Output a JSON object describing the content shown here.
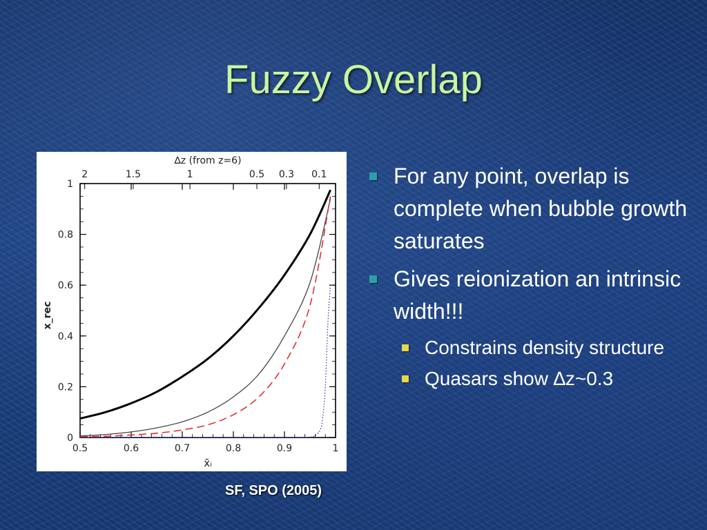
{
  "slide": {
    "title": "Fuzzy Overlap",
    "credit": "SF, SPO (2005)",
    "bullets": [
      {
        "text": "For any point, overlap is complete when bubble growth saturates"
      },
      {
        "text": "Gives reionization an intrinsic width!!!"
      }
    ],
    "sub_bullets": [
      {
        "text": "Constrains density structure"
      },
      {
        "text": "Quasars show ∆z~0.3"
      }
    ],
    "colors": {
      "title": "#c8f5a0",
      "bullet": "#2ba0a8",
      "sub_bullet": "#e6d84a"
    }
  },
  "chart_data": {
    "type": "line",
    "xlabel": "x̄ᵢ",
    "ylabel": "x_rec",
    "x2label": "∆z (from z=6)",
    "xlim": [
      0.5,
      1.0
    ],
    "ylim": [
      0,
      1.0
    ],
    "x_ticks": [
      "0.5",
      "0.6",
      "0.7",
      "0.8",
      "0.9",
      "1"
    ],
    "y_ticks": [
      "0",
      "0.2",
      "0.4",
      "0.6",
      "0.8",
      "1"
    ],
    "top_ticks": [
      {
        "label": "2",
        "x": 0.509
      },
      {
        "label": "1.5",
        "x": 0.604
      },
      {
        "label": "1",
        "x": 0.715
      },
      {
        "label": "0.5",
        "x": 0.846
      },
      {
        "label": "0.3",
        "x": 0.904
      },
      {
        "label": "0.1",
        "x": 0.968
      }
    ],
    "series": [
      {
        "style": "thick-solid",
        "color": "#000000",
        "x": [
          0.5,
          0.55,
          0.6,
          0.65,
          0.7,
          0.75,
          0.8,
          0.85,
          0.9,
          0.95,
          0.99
        ],
        "y": [
          0.075,
          0.1,
          0.135,
          0.18,
          0.24,
          0.31,
          0.4,
          0.51,
          0.64,
          0.8,
          0.975
        ]
      },
      {
        "style": "thin-solid",
        "color": "#444444",
        "x": [
          0.5,
          0.55,
          0.6,
          0.65,
          0.7,
          0.75,
          0.8,
          0.85,
          0.9,
          0.95,
          0.99
        ],
        "y": [
          0.006,
          0.012,
          0.022,
          0.038,
          0.062,
          0.1,
          0.16,
          0.25,
          0.4,
          0.61,
          0.94
        ]
      },
      {
        "style": "dashed",
        "color": "#e03030",
        "x": [
          0.5,
          0.55,
          0.6,
          0.65,
          0.7,
          0.75,
          0.8,
          0.85,
          0.9,
          0.95,
          0.99
        ],
        "y": [
          0.003,
          0.005,
          0.01,
          0.017,
          0.03,
          0.05,
          0.09,
          0.16,
          0.29,
          0.52,
          0.95
        ]
      },
      {
        "style": "dotted",
        "color": "#2222cc",
        "x": [
          0.5,
          0.9,
          0.95,
          0.96,
          0.97,
          0.975,
          0.98,
          0.985,
          0.99
        ],
        "y": [
          0.0,
          0.0,
          0.002,
          0.008,
          0.03,
          0.08,
          0.2,
          0.45,
          0.6
        ]
      }
    ]
  }
}
